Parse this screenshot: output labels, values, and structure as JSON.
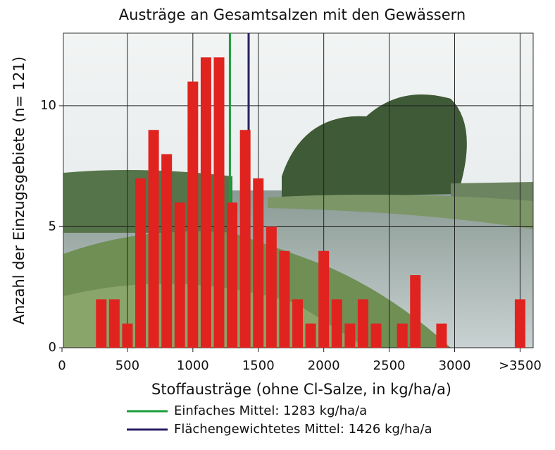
{
  "chart_data": {
    "type": "bar",
    "title": "Austräge an Gesamtsalzen mit den Gewässern",
    "x_label": "Stoffausträge (ohne Cl-Salze, in kg/ha/a)",
    "y_label": "Anzahl der Einzugsgebiete (n= 121)",
    "x": [
      300,
      400,
      500,
      600,
      700,
      800,
      900,
      1000,
      1100,
      1200,
      1300,
      1400,
      1500,
      1600,
      1700,
      1800,
      1900,
      2000,
      2100,
      2200,
      2300,
      2400,
      2600,
      2700,
      2900,
      3500
    ],
    "values": [
      2,
      2,
      1,
      7,
      9,
      8,
      6,
      11,
      12,
      12,
      6,
      9,
      7,
      5,
      4,
      2,
      1,
      4,
      2,
      1,
      2,
      1,
      1,
      3,
      1,
      2
    ],
    "color": "#e0231f",
    "xlim": [
      0,
      3600
    ],
    "ylim": [
      0,
      13
    ],
    "xticks": [
      0,
      500,
      1000,
      1500,
      2000,
      2500,
      3000,
      {
        "value": 3500,
        "label": ">3500"
      }
    ],
    "yticks": [
      0,
      5,
      10
    ],
    "grid": true,
    "mean_lines": [
      {
        "name": "Einfaches Mittel: 1283 kg/ha/a",
        "value": 1283,
        "color": "#1a9e3a"
      },
      {
        "name": "Flächengewichtetes Mittel: 1426 kg/ha/a",
        "value": 1426,
        "color": "#2a1f66"
      }
    ]
  }
}
